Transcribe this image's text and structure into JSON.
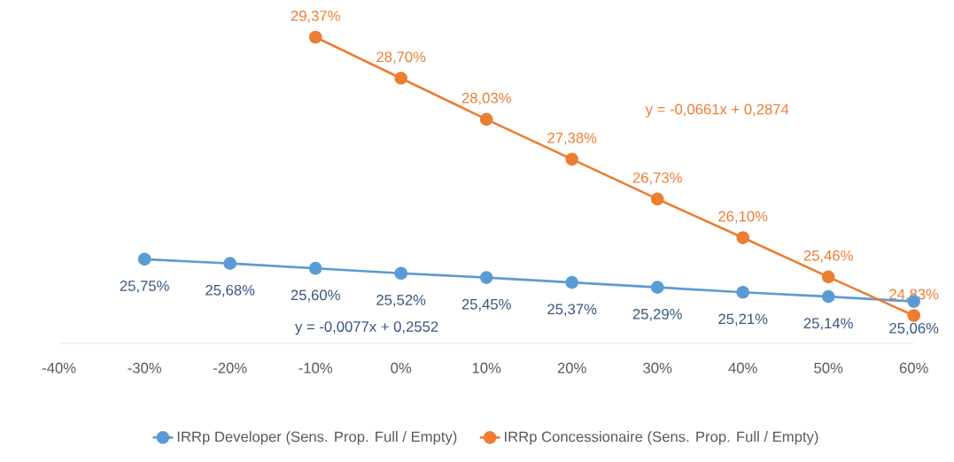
{
  "chart_data": {
    "type": "line",
    "x": [
      -30,
      -20,
      -10,
      0,
      10,
      20,
      30,
      40,
      50,
      60
    ],
    "series": [
      {
        "name": "IRRp Developer (Sens. Prop. Full / Empty)",
        "color": "#5b9bd5",
        "values": [
          25.75,
          25.68,
          25.6,
          25.52,
          25.45,
          25.37,
          25.29,
          25.21,
          25.14,
          25.06
        ],
        "value_labels": [
          "25,75%",
          "25,68%",
          "25,60%",
          "25,52%",
          "25,45%",
          "25,37%",
          "25,29%",
          "25,21%",
          "25,14%",
          "25,06%"
        ]
      },
      {
        "name": "IRRp Concessionaire (Sens. Prop. Full / Empty)",
        "color": "#ed7d31",
        "values": [
          null,
          null,
          29.37,
          28.7,
          28.03,
          27.38,
          26.73,
          26.1,
          25.46,
          24.83
        ],
        "value_labels": [
          null,
          null,
          "29,37%",
          "28,70%",
          "28,03%",
          "27,38%",
          "26,73%",
          "26,10%",
          "25,46%",
          "24,83%"
        ]
      }
    ],
    "xlim": [
      -40,
      60
    ],
    "xticks": [
      {
        "value": -40,
        "label": "-40%"
      },
      {
        "value": -30,
        "label": "-30%"
      },
      {
        "value": -20,
        "label": "-20%"
      },
      {
        "value": -10,
        "label": "-10%"
      },
      {
        "value": 0,
        "label": "0%"
      },
      {
        "value": 10,
        "label": "10%"
      },
      {
        "value": 20,
        "label": "20%"
      },
      {
        "value": 30,
        "label": "30%"
      },
      {
        "value": 40,
        "label": "40%"
      },
      {
        "value": 50,
        "label": "50%"
      },
      {
        "value": 60,
        "label": "60%"
      }
    ],
    "tick_labels": "x",
    "annotations": [
      "y = -0,0661x + 0,2874",
      "y = -0,0077x + 0,2552"
    ],
    "legend": "bottom",
    "marker": "circle",
    "line_style": "solid"
  }
}
